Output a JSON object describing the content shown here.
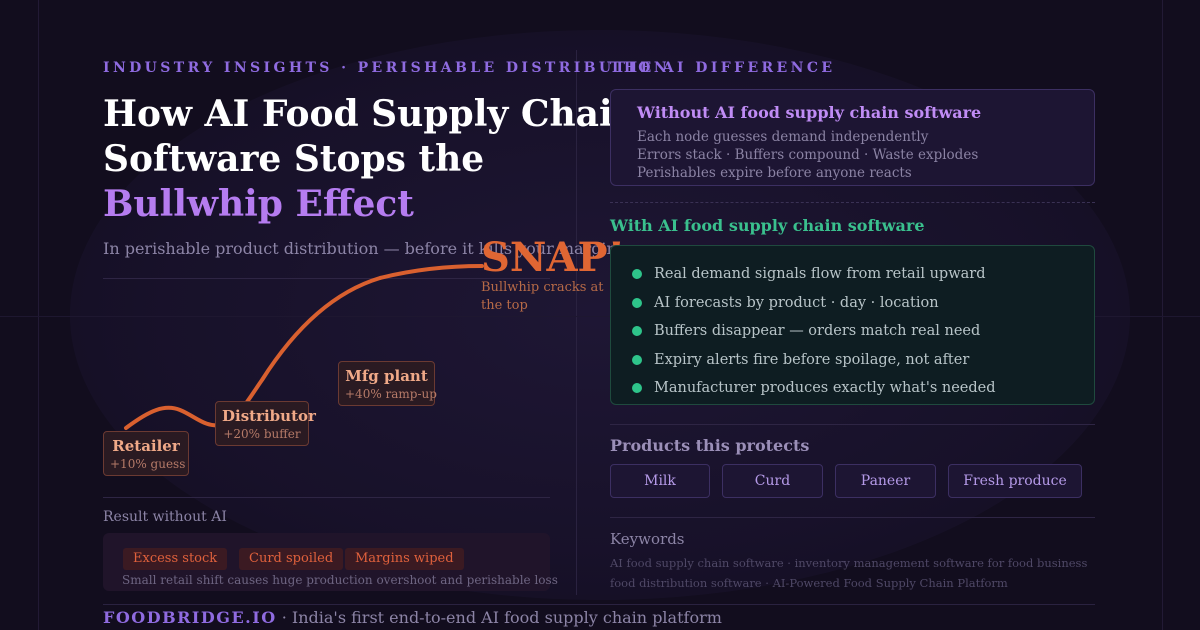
{
  "left": {
    "eyebrow": "INDUSTRY INSIGHTS · PERISHABLE DISTRIBUTION",
    "title_line1": "How AI Food Supply Chain",
    "title_line2": "Software Stops the",
    "title_accent": "Bullwhip Effect",
    "subtitle": "In perishable product distribution — before it kills your margins",
    "snap": "SNAP!",
    "snap_note": "Bullwhip cracks at the top",
    "nodes": [
      {
        "name": "Retailer",
        "sub": "+10% guess"
      },
      {
        "name": "Distributor",
        "sub": "+20% buffer"
      },
      {
        "name": "Mfg plant",
        "sub": "+40% ramp-up"
      }
    ],
    "result_label": "Result without AI",
    "result_tags": [
      "Excess stock",
      "Curd spoiled",
      "Margins wiped"
    ],
    "result_note": "Small retail shift causes huge production overshoot and perishable loss"
  },
  "right": {
    "eyebrow": "THE AI DIFFERENCE",
    "without": {
      "title": "Without AI food supply chain software",
      "lines": [
        "Each node guesses demand independently",
        "Errors stack · Buffers compound · Waste explodes",
        "Perishables expire before anyone reacts"
      ]
    },
    "with": {
      "title": "With AI food supply chain software",
      "bullets": [
        "Real demand signals flow from retail upward",
        "AI forecasts by product · day · location",
        "Buffers disappear — orders match real need",
        "Expiry alerts fire before spoilage, not after",
        "Manufacturer produces exactly what's needed"
      ]
    },
    "products_title": "Products this protects",
    "products": [
      "Milk",
      "Curd",
      "Paneer",
      "Fresh produce"
    ],
    "keywords_title": "Keywords",
    "keywords_lines": [
      "AI food supply chain software · inventory management software for food business",
      "food distribution software · AI-Powered Food Supply Chain Platform"
    ]
  },
  "footer": {
    "brand": "FOODBRIDGE.IO",
    "tagline": " · India's first end-to-end AI food supply chain platform"
  },
  "colors": {
    "background": "#120d1e",
    "accent_purple": "#b57cf0",
    "snap_orange": "#e06633",
    "success_green": "#2ec48a"
  }
}
